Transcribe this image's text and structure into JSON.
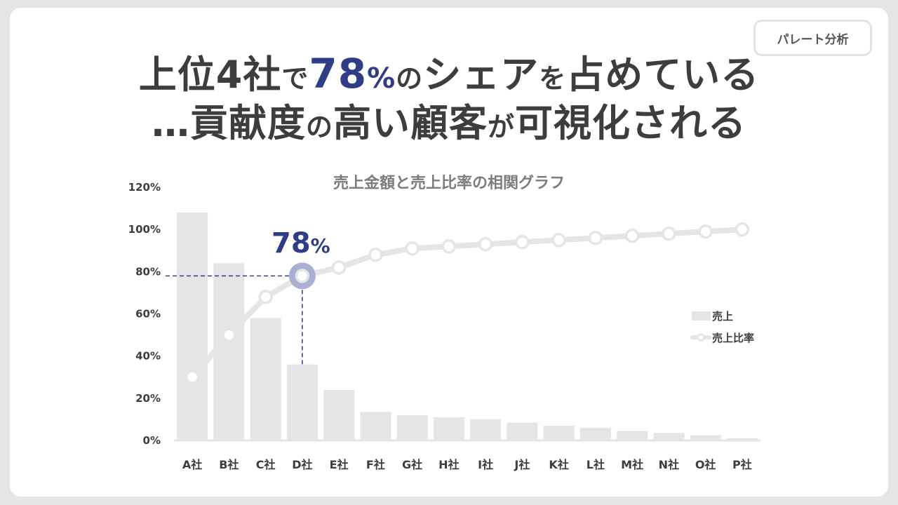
{
  "tag": "パレート分析",
  "headline": {
    "line1_a": "上位4社",
    "line1_b": "で",
    "line1_hi_num": "78",
    "line1_hi_pct": "%",
    "line1_c": "の",
    "line1_d": "シェア",
    "line1_e": "を",
    "line1_f": "占めている",
    "line2_a": "…貢献度",
    "line2_b": "の",
    "line2_c": "高い顧客",
    "line2_d": "が",
    "line2_e": "可視化される"
  },
  "colors": {
    "accent": "#2f3c86",
    "bar": "#e6e5e6",
    "line": "#e6e5e6",
    "text": "#3d3d3d",
    "highlight_dot": "#a9b0d3"
  },
  "chart_data": {
    "type": "bar",
    "title": "売上金額と売上比率の相関グラフ",
    "categories": [
      "A社",
      "B社",
      "C社",
      "D社",
      "E社",
      "F社",
      "G社",
      "H社",
      "I社",
      "J社",
      "K社",
      "L社",
      "M社",
      "N社",
      "O社",
      "P社"
    ],
    "y_ticks": [
      "0%",
      "20%",
      "40%",
      "60%",
      "80%",
      "100%",
      "120%"
    ],
    "ylim": [
      0,
      120
    ],
    "series": [
      {
        "name": "売上",
        "type": "bar",
        "values": [
          108,
          84,
          58,
          36,
          24,
          13.5,
          12,
          11,
          10,
          8.5,
          7,
          6,
          4.5,
          3.5,
          2.5,
          1
        ]
      },
      {
        "name": "売上比率",
        "type": "line",
        "values": [
          30,
          50,
          68,
          78,
          82,
          88,
          91,
          92,
          93,
          94,
          95,
          96,
          97,
          98,
          99,
          100
        ]
      }
    ],
    "annotation": {
      "text_num": "78",
      "text_pct": "%",
      "category": "D社",
      "value": 78
    },
    "legend_position": "right"
  }
}
